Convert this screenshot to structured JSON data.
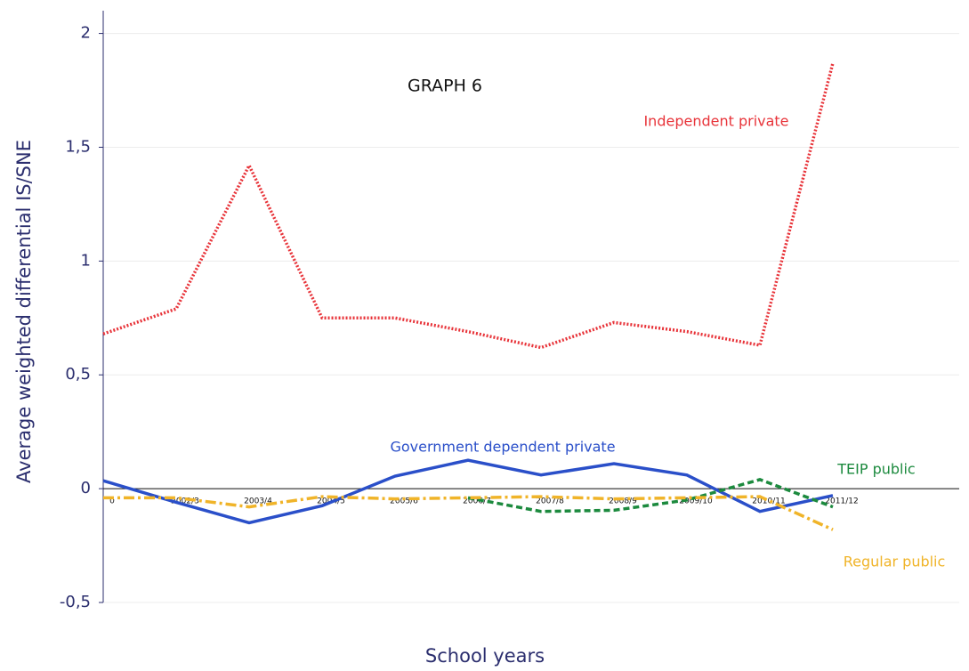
{
  "chart_data": {
    "type": "line",
    "title": "GRAPH 6",
    "x_label": "School years",
    "y_label": "Average weighted differential IS/SNE",
    "categories": [
      "0",
      "2002/3",
      "2003/4",
      "2004/5",
      "2005/6",
      "2006/7",
      "2007/8",
      "2008/9",
      "2009/10",
      "2010/11",
      "2011/12"
    ],
    "ylim": [
      -0.5,
      2.1
    ],
    "yticks": [
      {
        "value": -0.5,
        "label": "-0,5"
      },
      0,
      {
        "value": 0.5,
        "label": "0,5"
      },
      1,
      {
        "value": 1.5,
        "label": "1,5"
      },
      2
    ],
    "grid": true,
    "series": [
      {
        "name": "Independent private",
        "color": "#e8343a",
        "dash": "dotted",
        "values": [
          0.68,
          0.79,
          1.42,
          0.75,
          0.75,
          0.69,
          0.62,
          0.73,
          0.69,
          0.63,
          1.87
        ]
      },
      {
        "name": "Government dependent private",
        "color": "#2a4fc9",
        "dash": "solid",
        "values": [
          0.035,
          -0.06,
          -0.15,
          -0.075,
          0.055,
          0.125,
          0.06,
          0.11,
          0.06,
          -0.1,
          -0.03
        ]
      },
      {
        "name": "TEIP public",
        "color": "#1c8a3e",
        "dash": "dashed",
        "values": [
          null,
          null,
          null,
          null,
          null,
          -0.04,
          -0.1,
          -0.095,
          -0.05,
          0.04,
          -0.08
        ]
      },
      {
        "name": "Regular public",
        "color": "#f0b429",
        "dash": "dashdot",
        "values": [
          -0.04,
          -0.04,
          -0.08,
          -0.035,
          -0.045,
          -0.04,
          -0.035,
          -0.045,
          -0.04,
          -0.035,
          -0.18
        ]
      }
    ]
  }
}
